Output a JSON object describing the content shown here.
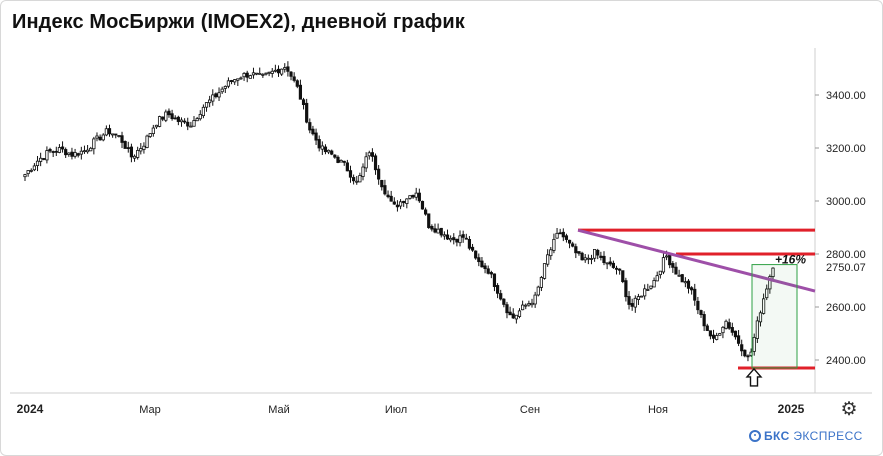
{
  "title": "Индекс МосБиржи (IMOEX2), дневной график",
  "brand": {
    "name": "БКС",
    "suffix": "ЭКСПРЕСС",
    "icon": "bcs-logo-icon"
  },
  "settings_icon": "gear-icon",
  "colors": {
    "resistance": "#e0202a",
    "trendline": "#9e4fa8",
    "box": "#2ea043",
    "candle": "#111111",
    "brand": "#3b73c8"
  },
  "chart_data": {
    "type": "candlestick",
    "title": "Индекс МосБиржи (IMOEX2), дневной график",
    "x_ticks": [
      "2024",
      "Мар",
      "Май",
      "Июл",
      "Сен",
      "Ноя",
      "2025"
    ],
    "y_ticks": [
      {
        "value": 2400,
        "label": "2400.00"
      },
      {
        "value": 2600,
        "label": "2600.00"
      },
      {
        "value": 2800,
        "label": "2800.00"
      },
      {
        "value": 3000,
        "label": "3000.00"
      },
      {
        "value": 3200,
        "label": "3200.00"
      },
      {
        "value": 3400,
        "label": "3400.00"
      }
    ],
    "ylim": [
      2330,
      3520
    ],
    "last_price": {
      "value": 2750.07,
      "label": "2750.07"
    },
    "close_series": [
      3100,
      3150,
      3185,
      3195,
      3175,
      3190,
      3230,
      3265,
      3240,
      3165,
      3215,
      3295,
      3330,
      3300,
      3290,
      3355,
      3395,
      3440,
      3470,
      3480,
      3465,
      3490,
      3510,
      3420,
      3270,
      3195,
      3170,
      3130,
      3065,
      3190,
      3070,
      2975,
      3010,
      3035,
      2910,
      2885,
      2855,
      2865,
      2775,
      2740,
      2645,
      2555,
      2600,
      2635,
      2790,
      2885,
      2825,
      2770,
      2805,
      2760,
      2740,
      2595,
      2655,
      2700,
      2795,
      2720,
      2670,
      2555,
      2470,
      2550,
      2475,
      2400,
      2600,
      2760
    ],
    "annotations": [
      {
        "type": "hline",
        "value": 2890,
        "color": "red"
      },
      {
        "type": "hline",
        "value": 2800,
        "color": "red"
      },
      {
        "type": "hline",
        "value": 2370,
        "color": "red"
      },
      {
        "type": "trendline",
        "from": 2890,
        "to": 2660,
        "color": "purple"
      },
      {
        "type": "box",
        "from": 2370,
        "to": 2760,
        "label": "+16%",
        "color": "green"
      },
      {
        "type": "arrow",
        "direction": "up",
        "at": 2370
      }
    ]
  }
}
